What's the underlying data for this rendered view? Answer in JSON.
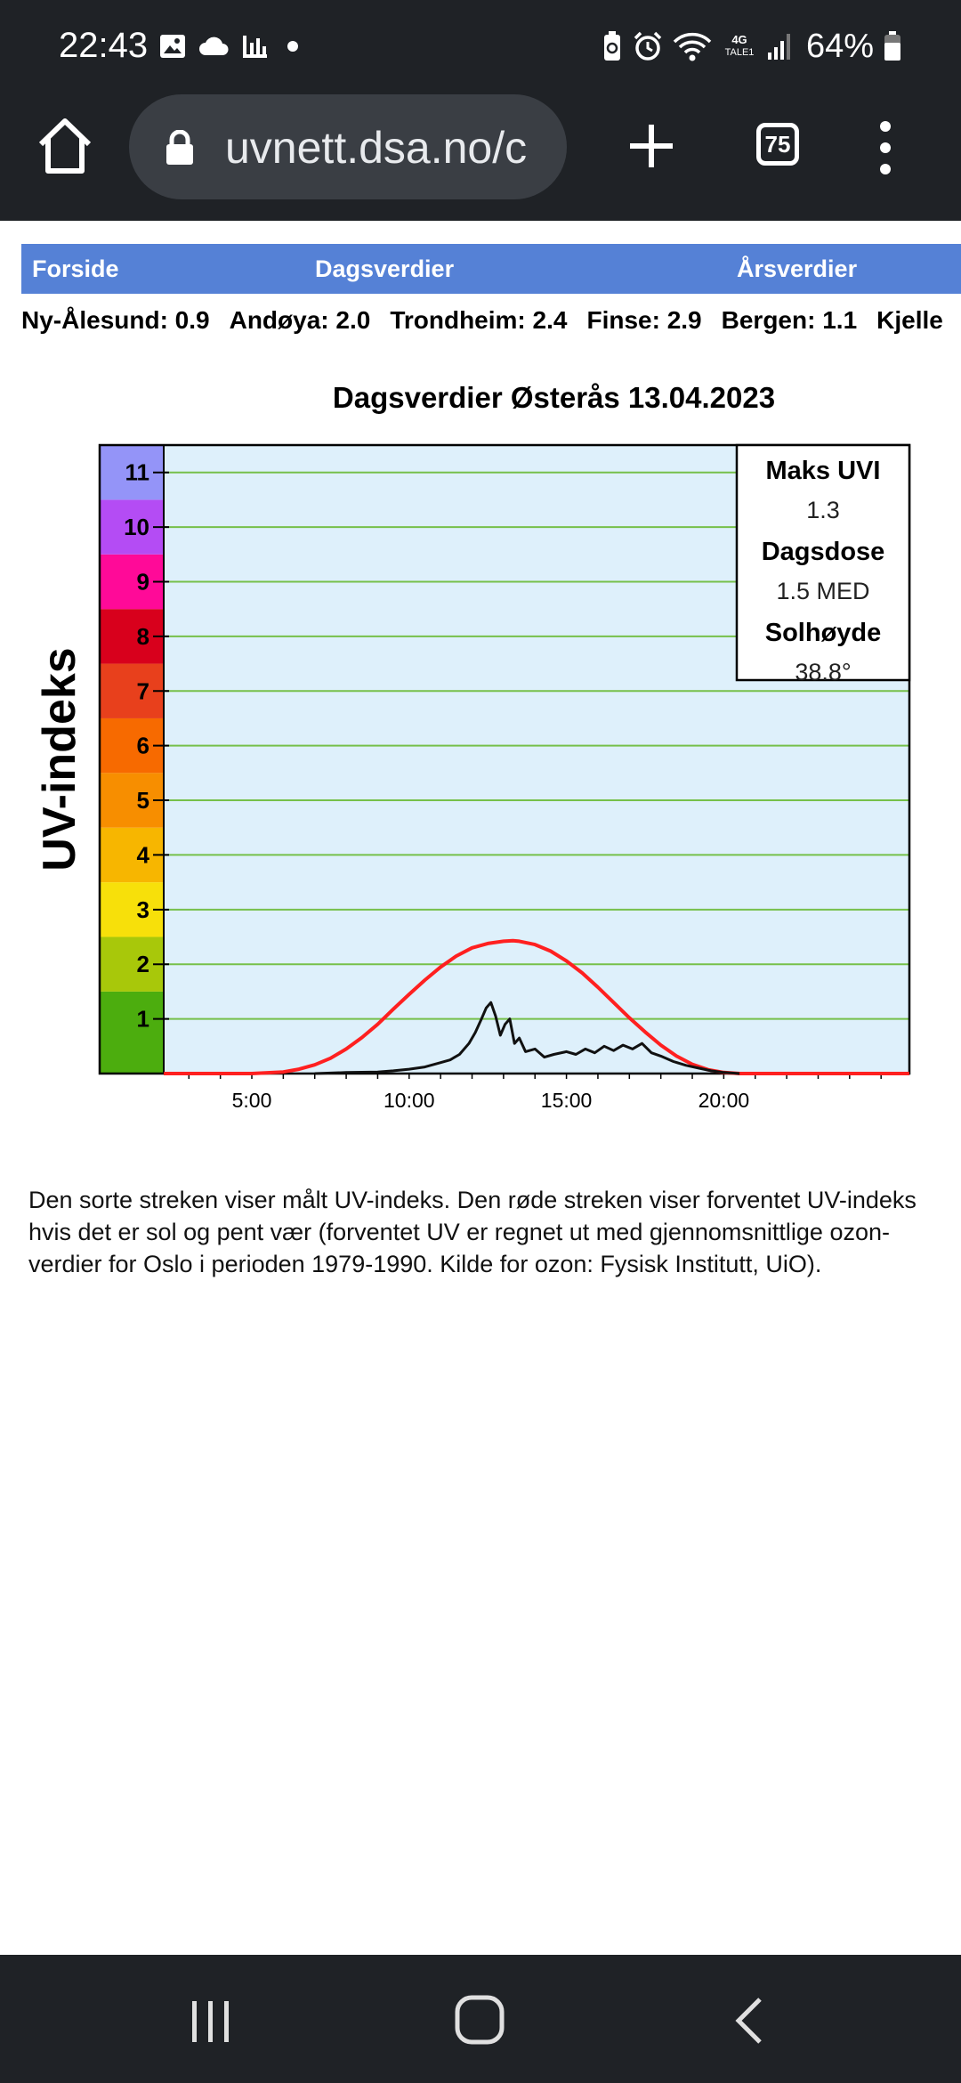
{
  "status_bar": {
    "time": "22:43",
    "left_icons": [
      "image-icon",
      "cloud-icon",
      "bar-chart-icon",
      "dot-icon"
    ],
    "right_icons": [
      "battery-saver-icon",
      "alarm-icon",
      "wifi-icon",
      "lte-icon",
      "signal-icon",
      "battery-icon"
    ],
    "network_label": "4G",
    "network_sublabel": "TALE1",
    "battery_percent": "64%"
  },
  "browser": {
    "url": "uvnett.dsa.no/c",
    "tab_count": "75",
    "icons": [
      "home-icon",
      "lock-icon",
      "plus-icon",
      "tabs-icon",
      "more-vert-icon"
    ]
  },
  "nav": {
    "items": [
      {
        "label": "Forside"
      },
      {
        "label": "Dagsverdier"
      },
      {
        "label": "Årsverdier"
      }
    ]
  },
  "stations": [
    {
      "label": "Ny-Ålesund: 0.9"
    },
    {
      "label": "Andøya: 2.0"
    },
    {
      "label": "Trondheim: 2.4"
    },
    {
      "label": "Finse: 2.9"
    },
    {
      "label": "Bergen: 1.1"
    },
    {
      "label": "Kjelle"
    }
  ],
  "chart_title": "Dagsverdier Østerås 13.04.2023",
  "chart_info": {
    "max_uvi_label": "Maks UVI",
    "max_uvi_value": "1.3",
    "dose_label": "Dagsdose",
    "dose_value": "1.5 MED",
    "sun_label": "Solhøyde",
    "sun_value": "38.8°"
  },
  "chart_data": {
    "type": "line",
    "title": "Dagsverdier Østerås 13.04.2023",
    "ylabel": "UV-indeks",
    "xlabel": "",
    "x_ticks": [
      "5:00",
      "10:00",
      "15:00",
      "20:00"
    ],
    "y_ticks": [
      "1",
      "2",
      "3",
      "4",
      "5",
      "6",
      "7",
      "8",
      "9",
      "10",
      "11"
    ],
    "xlim": [
      2.2,
      25.9
    ],
    "ylim": [
      0,
      11.5
    ],
    "grid": true,
    "uv_scale_colors": [
      "#4cad0e",
      "#a8c80a",
      "#f7e00a",
      "#f7b600",
      "#f78e00",
      "#f76a00",
      "#e8401c",
      "#d8001c",
      "#ff0a98",
      "#b44cf4",
      "#9494f8"
    ],
    "series": [
      {
        "name": "Forventet UV-indeks",
        "color": "#ff2020",
        "x": [
          5.0,
          6.0,
          6.5,
          7.0,
          7.5,
          8.0,
          8.5,
          9.0,
          9.5,
          10.0,
          10.5,
          11.0,
          11.5,
          12.0,
          12.5,
          13.0,
          13.3,
          13.5,
          14.0,
          14.5,
          15.0,
          15.5,
          16.0,
          16.5,
          17.0,
          17.5,
          18.0,
          18.5,
          19.0,
          19.5,
          20.0,
          20.5,
          21.5,
          25.9
        ],
        "y": [
          0.0,
          0.03,
          0.08,
          0.16,
          0.28,
          0.45,
          0.66,
          0.9,
          1.18,
          1.45,
          1.71,
          1.95,
          2.15,
          2.3,
          2.38,
          2.42,
          2.43,
          2.42,
          2.36,
          2.24,
          2.06,
          1.84,
          1.58,
          1.3,
          1.02,
          0.76,
          0.52,
          0.32,
          0.17,
          0.07,
          0.02,
          0.0,
          0.0,
          0.0
        ]
      },
      {
        "name": "Målt UV-indeks",
        "color": "#111111",
        "x": [
          7.0,
          8.0,
          9.0,
          9.5,
          10.0,
          10.5,
          11.0,
          11.3,
          11.6,
          11.9,
          12.1,
          12.3,
          12.45,
          12.6,
          12.75,
          12.9,
          13.05,
          13.2,
          13.35,
          13.5,
          13.7,
          14.0,
          14.3,
          14.6,
          15.0,
          15.3,
          15.6,
          15.9,
          16.2,
          16.5,
          16.8,
          17.1,
          17.4,
          17.7,
          18.0,
          18.4,
          18.8,
          19.2,
          19.6,
          20.0,
          20.5
        ],
        "y": [
          0.0,
          0.02,
          0.03,
          0.05,
          0.08,
          0.12,
          0.2,
          0.25,
          0.35,
          0.55,
          0.75,
          1.0,
          1.2,
          1.3,
          1.05,
          0.7,
          0.9,
          1.0,
          0.55,
          0.65,
          0.4,
          0.45,
          0.3,
          0.35,
          0.4,
          0.35,
          0.45,
          0.38,
          0.5,
          0.42,
          0.52,
          0.45,
          0.55,
          0.38,
          0.32,
          0.22,
          0.15,
          0.1,
          0.05,
          0.02,
          0.0
        ]
      }
    ]
  },
  "caption": "Den sorte streken viser målt UV-indeks. Den røde streken viser forventet UV-indeks hvis det er sol og pent vær (forventet UV er regnet ut med gjennomsnittlige ozon-verdier for Oslo i perioden 1979-1990. Kilde for ozon: Fysisk Institutt, UiO).",
  "system_nav": {
    "icons": [
      "recents-icon",
      "home-circle-icon",
      "back-icon"
    ]
  }
}
